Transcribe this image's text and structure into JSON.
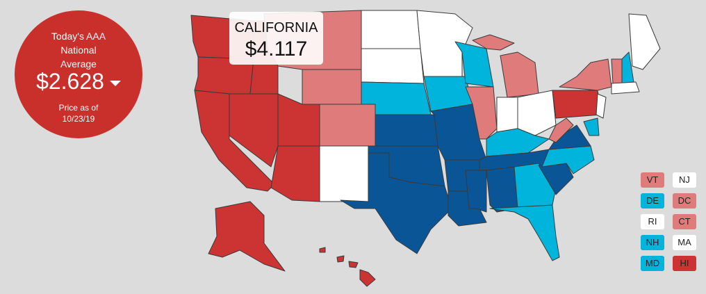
{
  "national": {
    "title": "Today's AAA National Average",
    "price": "$2.628",
    "date_label": "Price as of",
    "date": "10/23/19"
  },
  "tooltip": {
    "state": "CALIFORNIA",
    "price": "$4.117"
  },
  "small_states": [
    {
      "label": "VT",
      "color": "#e07b7b"
    },
    {
      "label": "NJ",
      "color": "#ffffff"
    },
    {
      "label": "DE",
      "color": "#00b4dc"
    },
    {
      "label": "DC",
      "color": "#e07b7b"
    },
    {
      "label": "RI",
      "color": "#ffffff"
    },
    {
      "label": "CT",
      "color": "#e07b7b"
    },
    {
      "label": "NH",
      "color": "#00b4dc"
    },
    {
      "label": "MA",
      "color": "#ffffff"
    },
    {
      "label": "MD",
      "color": "#00b4dc"
    },
    {
      "label": "HI",
      "color": "#cc3333"
    }
  ]
}
